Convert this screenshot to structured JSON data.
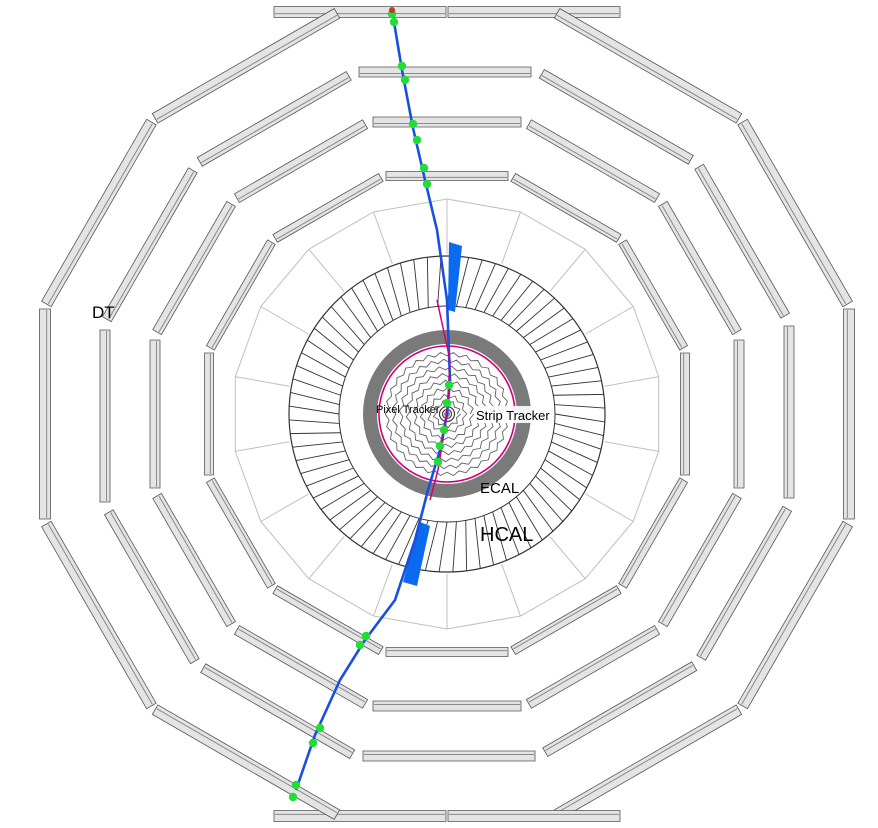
{
  "labels": {
    "dt": "DT",
    "pixel_tracker": "Pixel Tracker",
    "strip_tracker": "Strip Tracker",
    "ecal": "ECAL",
    "hcal": "HCAL"
  },
  "colors": {
    "background": "#ffffff",
    "muon_chamber_face": "#e4e4e4",
    "muon_chamber_edge": "#555555",
    "muon_chamber_line": "#8a8a8a",
    "hcal_outline": "#bfbfbf",
    "hcal_cells": "#333333",
    "ecal": "#7a7a7a",
    "solenoid": "#cc0077",
    "tracker": "#606060",
    "muon_track": "#1a4fe0",
    "track_hits": "#22dd33",
    "energy_deposit": "#0a6af0",
    "track_end": "#cc3333"
  },
  "icons": [
    "muon-track-icon",
    "track-hit-icon",
    "energy-tower-icon"
  ]
}
